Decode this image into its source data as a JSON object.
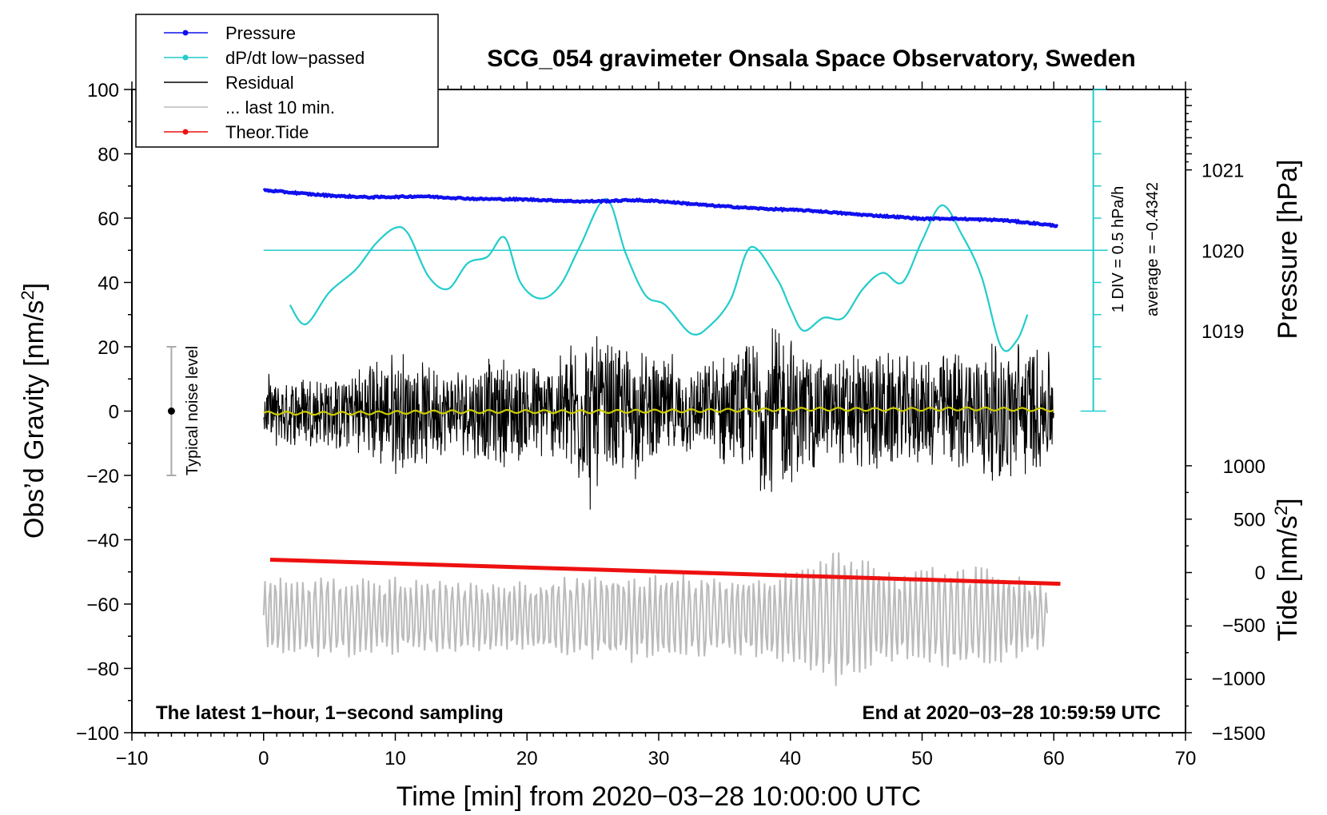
{
  "chart_data": {
    "type": "line",
    "title": "SCG_054 gravimeter Onsala Space Observatory, Sweden",
    "xlabel": "Time [min] from 2020−03−28 10:00:00 UTC",
    "ylabel": "Obs’d Gravity [nm/s",
    "ylabel_sup": "2",
    "ylabel_tail": "]",
    "xlim": [
      -10,
      70
    ],
    "ylim": [
      -100,
      100
    ],
    "x_ticks": [
      "−10",
      "0",
      "10",
      "20",
      "30",
      "40",
      "50",
      "60",
      "70"
    ],
    "x_tick_values": [
      -10,
      0,
      10,
      20,
      30,
      40,
      50,
      60,
      70
    ],
    "y_ticks": [
      "100",
      "80",
      "60",
      "40",
      "20",
      "0",
      "−20",
      "−40",
      "−60",
      "−80",
      "−100"
    ],
    "y_tick_values": [
      100,
      80,
      60,
      40,
      20,
      0,
      -20,
      -40,
      -60,
      -80,
      -100
    ],
    "pressure_axis": {
      "label": "Pressure [hPa]",
      "ticks": [
        "1021",
        "1020",
        "1019"
      ],
      "tick_values": [
        1021,
        1020,
        1019
      ],
      "gravity_equiv": [
        75,
        50,
        25
      ]
    },
    "tide_axis": {
      "label": "Tide [nm/s",
      "label_sup": "2",
      "label_tail": "]",
      "ticks": [
        "1000",
        "500",
        "0",
        "−500",
        "−1000",
        "−1500"
      ],
      "tick_values": [
        1000,
        500,
        0,
        -500,
        -1000,
        -1500
      ],
      "gravity_equiv": [
        -17,
        -33.5,
        -50,
        -66.5,
        -83,
        -100
      ]
    },
    "dpdt_scale": {
      "label": "1 DIV = 0.5 hPa/h",
      "average": "average = −0.4342",
      "x": 63,
      "ymin": 0,
      "ymax": 100,
      "baseline": 50
    },
    "legend": [
      {
        "label": "Pressure",
        "color": "#1010ee",
        "marker": true
      },
      {
        "label": "dP/dt low−passed",
        "color": "#22cccc",
        "marker": true
      },
      {
        "label": "Residual",
        "color": "#000000",
        "marker": false
      },
      {
        "label": "... last 10 min.",
        "color": "#bbbbbb",
        "marker": false
      },
      {
        "label": "Theor.Tide",
        "color": "#ee1010",
        "marker": true
      }
    ],
    "notes": {
      "left": "The latest 1−hour, 1−second sampling",
      "right": "End at 2020−03−28 10:59:59 UTC"
    },
    "noise_bar": {
      "label": "Typical noise level",
      "x": -7,
      "center": 0,
      "half_range": 20
    },
    "series": [
      {
        "name": "Pressure",
        "color": "#1010ee",
        "x": [
          0,
          2,
          4,
          6,
          8,
          10,
          12,
          14,
          16,
          18,
          20,
          22,
          24,
          26,
          28,
          30,
          32,
          34,
          36,
          38,
          40,
          42,
          44,
          46,
          48,
          50,
          52,
          54,
          56,
          58,
          60.3
        ],
        "values": [
          68.7,
          68.0,
          67.3,
          66.8,
          66.5,
          66.6,
          66.8,
          66.4,
          66.0,
          65.9,
          65.8,
          65.5,
          65.2,
          65.3,
          65.6,
          65.3,
          64.6,
          63.9,
          63.4,
          62.9,
          62.6,
          62.2,
          61.5,
          60.9,
          60.4,
          59.8,
          59.9,
          59.6,
          59.4,
          58.6,
          57.6
        ]
      },
      {
        "name": "dP/dt low-passed",
        "color": "#22cccc",
        "x": [
          2.0,
          3.2,
          5.0,
          7.0,
          8.5,
          10.0,
          11.0,
          12.5,
          14.0,
          15.5,
          17.0,
          18.3,
          19.5,
          21.0,
          22.5,
          24.0,
          26.0,
          27.5,
          29.0,
          30.5,
          32.5,
          34.0,
          35.5,
          37.0,
          39.0,
          40.0,
          41.0,
          42.5,
          44.0,
          45.5,
          47.0,
          48.5,
          50.0,
          51.5,
          53.0,
          54.5,
          56.0,
          57.2,
          58.0
        ],
        "values": [
          33,
          27,
          37,
          44,
          52,
          57,
          55,
          42,
          38,
          46,
          48,
          54,
          40,
          35,
          39,
          51,
          66,
          49,
          36,
          33,
          24,
          27,
          35,
          51,
          41,
          32,
          25,
          29,
          29,
          38,
          43,
          40,
          53,
          64,
          55,
          42,
          20,
          22,
          30
        ]
      },
      {
        "name": "Residual",
        "color": "#000000",
        "x_range": [
          0,
          60
        ],
        "mean": 0,
        "envelope": [
          {
            "x": 0,
            "amp": 12
          },
          {
            "x": 5,
            "amp": 12
          },
          {
            "x": 10,
            "amp": 20
          },
          {
            "x": 14,
            "amp": 13
          },
          {
            "x": 18,
            "amp": 18
          },
          {
            "x": 22,
            "amp": 15
          },
          {
            "x": 24,
            "amp": 26
          },
          {
            "x": 28,
            "amp": 20
          },
          {
            "x": 32,
            "amp": 14
          },
          {
            "x": 36,
            "amp": 20
          },
          {
            "x": 39,
            "amp": 28
          },
          {
            "x": 43,
            "amp": 16
          },
          {
            "x": 46,
            "amp": 20
          },
          {
            "x": 50,
            "amp": 18
          },
          {
            "x": 54,
            "amp": 20
          },
          {
            "x": 57,
            "amp": 24
          },
          {
            "x": 60,
            "amp": 18
          }
        ]
      },
      {
        "name": "Running mean",
        "color": "#cccc00",
        "x": [
          0,
          6,
          12,
          18,
          24,
          30,
          36,
          42,
          48,
          54,
          60
        ],
        "values": [
          -0.6,
          -0.7,
          -0.3,
          -0.1,
          -0.2,
          0.0,
          0.3,
          0.6,
          0.5,
          0.7,
          0.4
        ]
      },
      {
        "name": "... last 10 min.",
        "color": "#bbbbbb",
        "x_range": [
          0,
          59.5
        ],
        "center": -64,
        "envelope": [
          {
            "x": 0,
            "amp": 14
          },
          {
            "x": 10,
            "amp": 13
          },
          {
            "x": 20,
            "amp": 12
          },
          {
            "x": 28,
            "amp": 15
          },
          {
            "x": 35,
            "amp": 13
          },
          {
            "x": 40,
            "amp": 15
          },
          {
            "x": 43,
            "amp": 24
          },
          {
            "x": 48,
            "amp": 14
          },
          {
            "x": 52,
            "amp": 18
          },
          {
            "x": 56,
            "amp": 16
          },
          {
            "x": 59.5,
            "amp": 10
          }
        ]
      },
      {
        "name": "Theor.Tide",
        "color": "#ee1010",
        "x": [
          0.5,
          60.5
        ],
        "values": [
          -46.2,
          -53.7
        ]
      }
    ]
  }
}
